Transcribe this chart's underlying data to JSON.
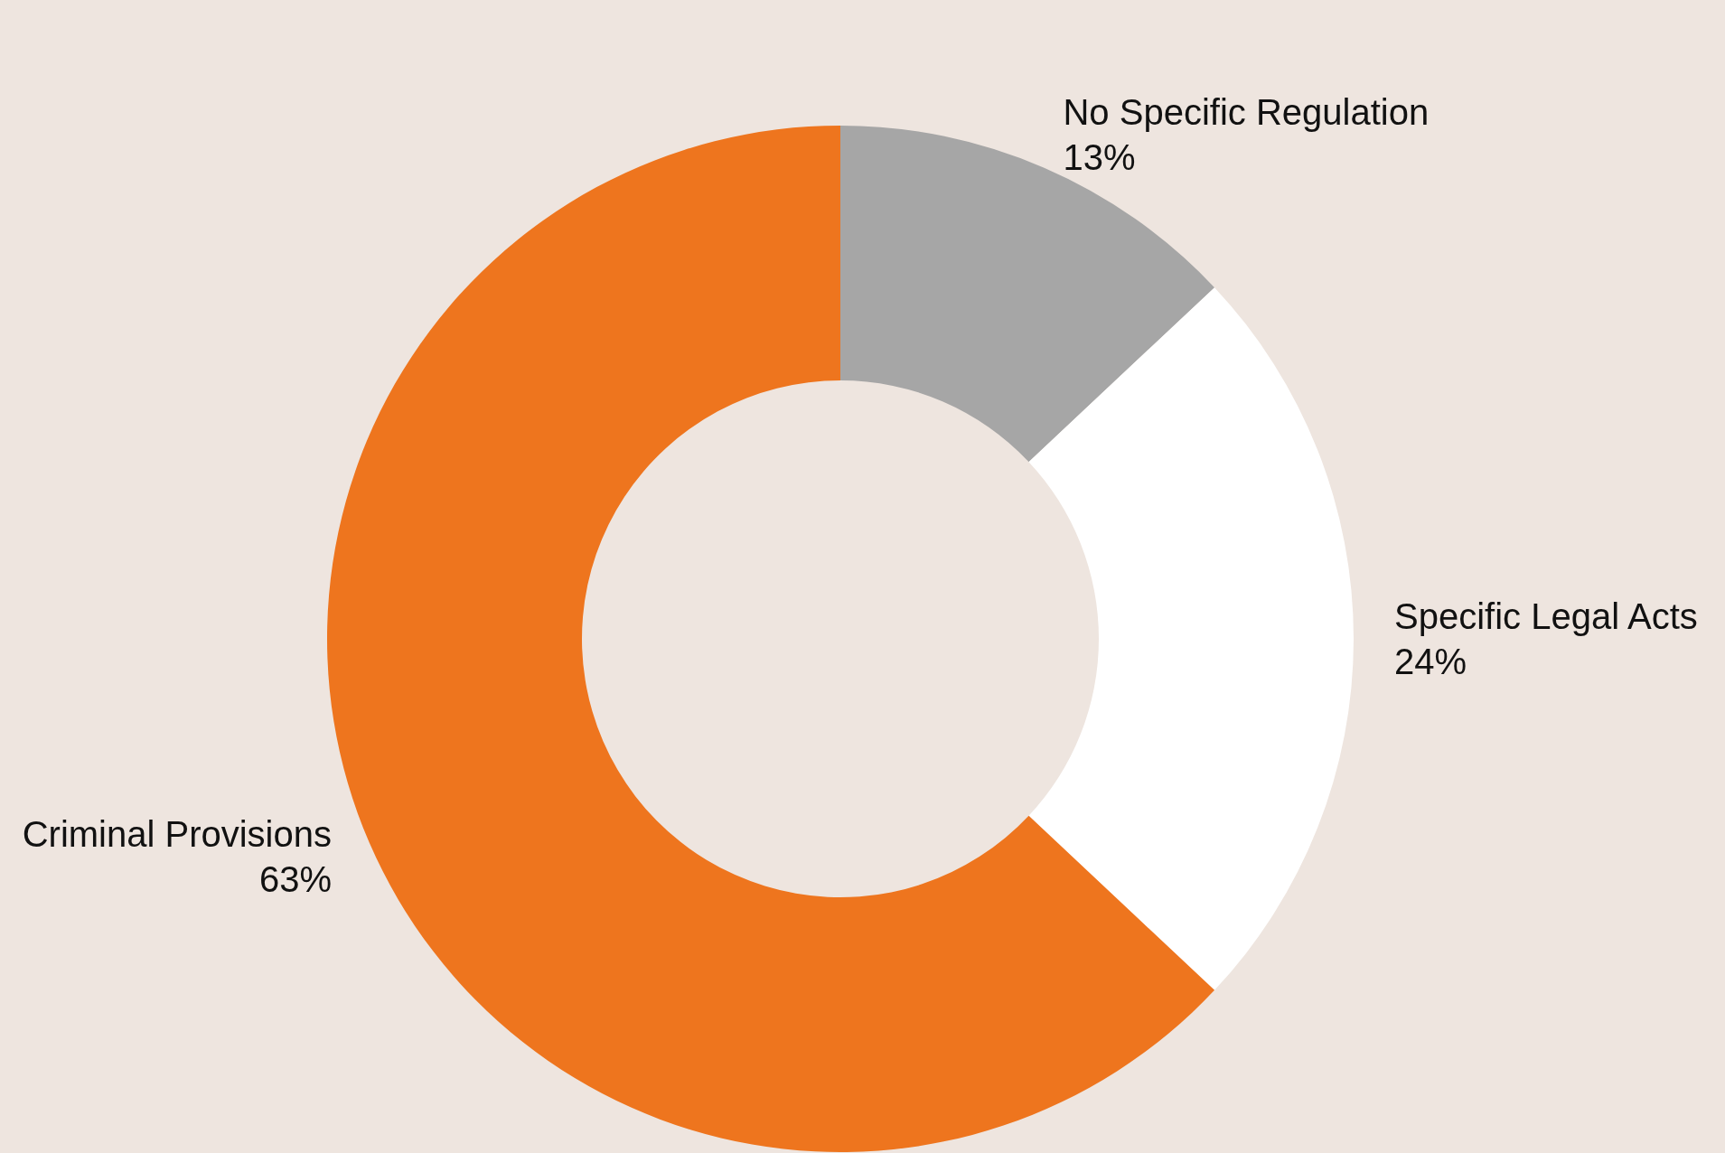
{
  "chart_data": {
    "type": "donut",
    "categories": [
      "No Specific Regulation",
      "Specific Legal Acts",
      "Criminal Provisions"
    ],
    "values": [
      13,
      24,
      63
    ],
    "value_labels": [
      "13%",
      "24%",
      "63%"
    ],
    "colors": [
      "#a6a6a6",
      "#ffffff",
      "#ee751e"
    ],
    "legend": false
  }
}
